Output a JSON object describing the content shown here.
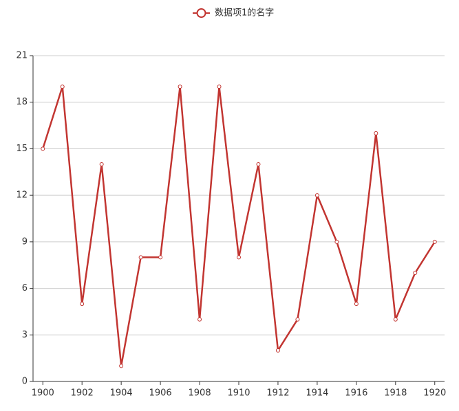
{
  "chart_data": {
    "type": "line",
    "x": [
      1900,
      1901,
      1902,
      1903,
      1904,
      1905,
      1906,
      1907,
      1908,
      1909,
      1910,
      1911,
      1912,
      1913,
      1914,
      1915,
      1916,
      1917,
      1918,
      1919,
      1920
    ],
    "series": [
      {
        "name": "数据项1的名字",
        "color": "#c23531",
        "values": [
          15,
          19,
          5,
          14,
          1,
          8,
          8,
          19,
          4,
          19,
          8,
          14,
          2,
          4,
          12,
          9,
          5,
          16,
          4,
          7,
          9
        ]
      }
    ],
    "xlim": [
      1899.5,
      1920.5
    ],
    "xticks": [
      1900,
      1902,
      1904,
      1906,
      1908,
      1910,
      1912,
      1914,
      1916,
      1918,
      1920
    ],
    "ylim": [
      0,
      21
    ],
    "yticks": [
      0,
      3,
      6,
      9,
      12,
      15,
      18,
      21
    ],
    "grid": true,
    "legend": "top"
  }
}
